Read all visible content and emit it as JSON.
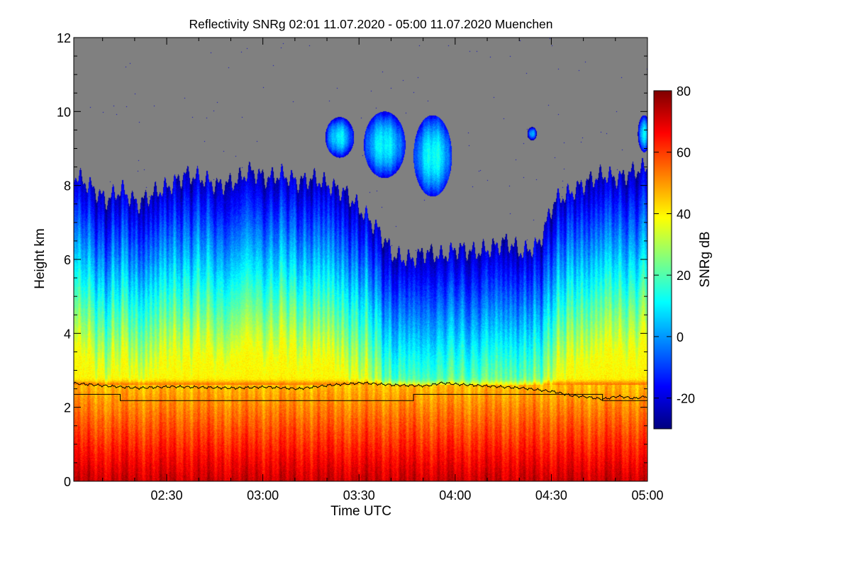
{
  "chart_data": {
    "type": "heatmap",
    "title": "Reflectivity SNRg   02:01 11.07.2020 - 05:00 11.07.2020 Muenchen",
    "xlabel": "Time UTC",
    "ylabel": "Height km",
    "x_range_minutes": [
      121,
      300
    ],
    "xticks": [
      {
        "minutes": 150,
        "label": "02:30"
      },
      {
        "minutes": 180,
        "label": "03:00"
      },
      {
        "minutes": 210,
        "label": "03:30"
      },
      {
        "minutes": 240,
        "label": "04:00"
      },
      {
        "minutes": 270,
        "label": "04:30"
      },
      {
        "minutes": 300,
        "label": "05:00"
      }
    ],
    "ylim": [
      0,
      12
    ],
    "yticks": [
      {
        "value": 0,
        "label": "0"
      },
      {
        "value": 2,
        "label": "2"
      },
      {
        "value": 4,
        "label": "4"
      },
      {
        "value": 6,
        "label": "6"
      },
      {
        "value": 8,
        "label": "8"
      },
      {
        "value": 10,
        "label": "10"
      },
      {
        "value": 12,
        "label": "12"
      }
    ],
    "colorbar": {
      "label": "SNRg dB",
      "range": [
        -30,
        80
      ],
      "ticks": [
        {
          "value": -20,
          "label": "-20"
        },
        {
          "value": 0,
          "label": "0"
        },
        {
          "value": 20,
          "label": "20"
        },
        {
          "value": 40,
          "label": "40"
        },
        {
          "value": 60,
          "label": "60"
        },
        {
          "value": 80,
          "label": "80"
        }
      ],
      "colormap": [
        "#00007f",
        "#0000ff",
        "#0080ff",
        "#00ffff",
        "#80ff80",
        "#ffff00",
        "#ff8000",
        "#ff0000",
        "#7f0000"
      ]
    },
    "no_data_color": "#808080",
    "cloud_top_km": {
      "minutes": [
        121,
        126,
        131,
        136,
        141,
        146,
        151,
        156,
        161,
        166,
        171,
        176,
        181,
        186,
        191,
        196,
        201,
        206,
        211,
        216,
        221,
        226,
        231,
        236,
        241,
        246,
        251,
        256,
        261,
        266,
        271,
        276,
        281,
        286,
        291,
        296,
        300
      ],
      "height": [
        8.3,
        8.0,
        7.6,
        7.9,
        7.5,
        7.8,
        8.0,
        8.3,
        8.2,
        8.0,
        8.1,
        8.4,
        8.2,
        8.3,
        8.1,
        8.2,
        8.0,
        7.8,
        7.3,
        6.8,
        6.1,
        6.0,
        6.2,
        6.1,
        6.3,
        6.2,
        6.3,
        6.5,
        6.2,
        6.4,
        7.6,
        7.8,
        8.1,
        8.3,
        8.2,
        8.4,
        8.5
      ]
    },
    "upper_cloud_patches": [
      {
        "center_minutes": 204,
        "center_km": 9.3,
        "half_width_minutes": 4.5,
        "half_height_km": 0.55,
        "snr_db": 10
      },
      {
        "center_minutes": 218,
        "center_km": 9.1,
        "half_width_minutes": 6.5,
        "half_height_km": 0.9,
        "snr_db": 12
      },
      {
        "center_minutes": 233,
        "center_km": 8.8,
        "half_width_minutes": 6.0,
        "half_height_km": 1.1,
        "snr_db": 14
      },
      {
        "center_minutes": 264,
        "center_km": 9.4,
        "half_width_minutes": 1.5,
        "half_height_km": 0.18,
        "snr_db": 2
      },
      {
        "center_minutes": 299,
        "center_km": 9.4,
        "half_width_minutes": 2.0,
        "half_height_km": 0.5,
        "snr_db": 8
      }
    ],
    "melting_layer_km": 2.6,
    "profile_level_sampled": {
      "minutes": [
        121,
        131,
        141,
        151,
        161,
        171,
        181,
        191,
        201,
        211,
        221,
        231,
        236,
        241,
        251,
        261,
        271,
        276,
        281,
        286,
        291,
        296,
        300
      ],
      "height_km": [
        2.65,
        2.58,
        2.52,
        2.56,
        2.54,
        2.52,
        2.55,
        2.5,
        2.6,
        2.66,
        2.6,
        2.58,
        2.66,
        2.62,
        2.57,
        2.52,
        2.42,
        2.32,
        2.28,
        2.22,
        2.3,
        2.24,
        2.3
      ]
    },
    "step_line": {
      "minutes": [
        121,
        135.5,
        135.5,
        179,
        179,
        227,
        227,
        265,
        265,
        286,
        286,
        300
      ],
      "height_km": [
        2.35,
        2.35,
        2.18,
        2.18,
        2.18,
        2.18,
        2.35,
        2.35,
        2.35,
        2.35,
        2.18,
        2.18
      ]
    }
  }
}
